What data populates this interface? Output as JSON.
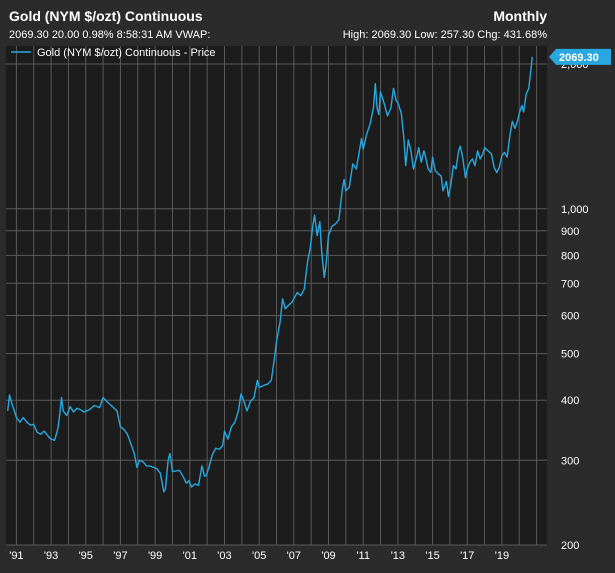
{
  "header": {
    "title": "Gold (NYM $/ozt) Continuous",
    "period": "Monthly",
    "quote": "2069.30 20.00 0.98% 8:58:31 AM VWAP:",
    "stats": "High: 2069.30 Low: 257.30 Chg: 431.68%"
  },
  "legend": {
    "label": "Gold (NYM $/ozt) Continuous - Price"
  },
  "price_tag": {
    "value": "2069.30"
  },
  "colors": {
    "background": "#2b2b2b",
    "plot_background": "#1c1c1c",
    "grid": "#5a5a5a",
    "line": "#29a8e0",
    "text": "#ffffff"
  },
  "chart_data": {
    "type": "line",
    "title": "Gold (NYM $/ozt) Continuous",
    "series_name": "Gold (NYM $/ozt) Continuous - Price",
    "y_scale": "log",
    "ylim": [
      200,
      2180
    ],
    "xlim": [
      1990.4,
      2021.6
    ],
    "y_ticks": [
      {
        "value": 200,
        "label": "200"
      },
      {
        "value": 300,
        "label": "300"
      },
      {
        "value": 400,
        "label": "400"
      },
      {
        "value": 500,
        "label": "500"
      },
      {
        "value": 600,
        "label": "600"
      },
      {
        "value": 700,
        "label": "700"
      },
      {
        "value": 800,
        "label": "800"
      },
      {
        "value": 900,
        "label": "900"
      },
      {
        "value": 1000,
        "label": "1,000"
      },
      {
        "value": 2000,
        "label": "2,000"
      }
    ],
    "x_ticks": [
      {
        "value": 1991,
        "label": "'91"
      },
      {
        "value": 1993,
        "label": "'93"
      },
      {
        "value": 1995,
        "label": "'95"
      },
      {
        "value": 1997,
        "label": "'97"
      },
      {
        "value": 1999,
        "label": "'99"
      },
      {
        "value": 2001,
        "label": "'01"
      },
      {
        "value": 2003,
        "label": "'03"
      },
      {
        "value": 2005,
        "label": "'05"
      },
      {
        "value": 2007,
        "label": "'07"
      },
      {
        "value": 2009,
        "label": "'09"
      },
      {
        "value": 2011,
        "label": "'11"
      },
      {
        "value": 2013,
        "label": "'13"
      },
      {
        "value": 2015,
        "label": "'15"
      },
      {
        "value": 2017,
        "label": "'17"
      },
      {
        "value": 2019,
        "label": "'19"
      }
    ],
    "grid_years": [
      1991,
      1992,
      1993,
      1994,
      1995,
      1996,
      1997,
      1998,
      1999,
      2000,
      2001,
      2002,
      2003,
      2004,
      2005,
      2006,
      2007,
      2008,
      2009,
      2010,
      2011,
      2012,
      2013,
      2014,
      2015,
      2016,
      2017,
      2018,
      2019,
      2020,
      2021
    ],
    "points": [
      [
        1990.5,
        380
      ],
      [
        1990.6,
        410
      ],
      [
        1990.75,
        392
      ],
      [
        1990.9,
        378
      ],
      [
        1991.0,
        368
      ],
      [
        1991.2,
        360
      ],
      [
        1991.4,
        368
      ],
      [
        1991.6,
        360
      ],
      [
        1991.8,
        355
      ],
      [
        1992.0,
        356
      ],
      [
        1992.2,
        343
      ],
      [
        1992.4,
        340
      ],
      [
        1992.6,
        345
      ],
      [
        1992.8,
        338
      ],
      [
        1992.95,
        333
      ],
      [
        1993.2,
        330
      ],
      [
        1993.4,
        350
      ],
      [
        1993.5,
        375
      ],
      [
        1993.6,
        405
      ],
      [
        1993.7,
        380
      ],
      [
        1993.9,
        372
      ],
      [
        1994.1,
        388
      ],
      [
        1994.3,
        378
      ],
      [
        1994.5,
        385
      ],
      [
        1994.7,
        382
      ],
      [
        1994.9,
        378
      ],
      [
        1995.2,
        382
      ],
      [
        1995.5,
        390
      ],
      [
        1995.8,
        386
      ],
      [
        1996.0,
        405
      ],
      [
        1996.2,
        398
      ],
      [
        1996.4,
        392
      ],
      [
        1996.6,
        386
      ],
      [
        1996.8,
        380
      ],
      [
        1997.0,
        352
      ],
      [
        1997.2,
        348
      ],
      [
        1997.4,
        340
      ],
      [
        1997.6,
        325
      ],
      [
        1997.8,
        310
      ],
      [
        1997.95,
        290
      ],
      [
        1998.1,
        300
      ],
      [
        1998.3,
        298
      ],
      [
        1998.5,
        292
      ],
      [
        1998.7,
        292
      ],
      [
        1998.9,
        290
      ],
      [
        1999.1,
        288
      ],
      [
        1999.3,
        282
      ],
      [
        1999.5,
        258
      ],
      [
        1999.6,
        262
      ],
      [
        1999.75,
        300
      ],
      [
        1999.85,
        310
      ],
      [
        2000.0,
        284
      ],
      [
        2000.2,
        285
      ],
      [
        2000.4,
        286
      ],
      [
        2000.6,
        278
      ],
      [
        2000.8,
        269
      ],
      [
        2000.95,
        272
      ],
      [
        2001.1,
        264
      ],
      [
        2001.3,
        268
      ],
      [
        2001.5,
        266
      ],
      [
        2001.7,
        292
      ],
      [
        2001.85,
        278
      ],
      [
        2001.95,
        279
      ],
      [
        2002.1,
        290
      ],
      [
        2002.3,
        308
      ],
      [
        2002.5,
        318
      ],
      [
        2002.7,
        316
      ],
      [
        2002.9,
        322
      ],
      [
        2003.0,
        345
      ],
      [
        2003.2,
        332
      ],
      [
        2003.4,
        352
      ],
      [
        2003.6,
        360
      ],
      [
        2003.8,
        380
      ],
      [
        2003.95,
        412
      ],
      [
        2004.1,
        400
      ],
      [
        2004.3,
        380
      ],
      [
        2004.5,
        398
      ],
      [
        2004.7,
        405
      ],
      [
        2004.9,
        440
      ],
      [
        2005.0,
        425
      ],
      [
        2005.3,
        430
      ],
      [
        2005.5,
        432
      ],
      [
        2005.7,
        440
      ],
      [
        2005.9,
        495
      ],
      [
        2006.0,
        530
      ],
      [
        2006.2,
        580
      ],
      [
        2006.35,
        650
      ],
      [
        2006.5,
        620
      ],
      [
        2006.7,
        630
      ],
      [
        2006.9,
        640
      ],
      [
        2007.0,
        650
      ],
      [
        2007.2,
        670
      ],
      [
        2007.4,
        660
      ],
      [
        2007.6,
        680
      ],
      [
        2007.8,
        780
      ],
      [
        2007.95,
        830
      ],
      [
        2008.1,
        925
      ],
      [
        2008.2,
        970
      ],
      [
        2008.35,
        880
      ],
      [
        2008.5,
        940
      ],
      [
        2008.6,
        820
      ],
      [
        2008.75,
        720
      ],
      [
        2008.85,
        760
      ],
      [
        2009.0,
        880
      ],
      [
        2009.2,
        920
      ],
      [
        2009.4,
        930
      ],
      [
        2009.6,
        950
      ],
      [
        2009.8,
        1100
      ],
      [
        2009.9,
        1150
      ],
      [
        2010.0,
        1090
      ],
      [
        2010.2,
        1110
      ],
      [
        2010.4,
        1240
      ],
      [
        2010.6,
        1210
      ],
      [
        2010.75,
        1300
      ],
      [
        2010.9,
        1400
      ],
      [
        2011.0,
        1330
      ],
      [
        2011.2,
        1430
      ],
      [
        2011.4,
        1500
      ],
      [
        2011.6,
        1630
      ],
      [
        2011.7,
        1820
      ],
      [
        2011.8,
        1620
      ],
      [
        2011.9,
        1570
      ],
      [
        2012.0,
        1750
      ],
      [
        2012.2,
        1660
      ],
      [
        2012.4,
        1560
      ],
      [
        2012.6,
        1620
      ],
      [
        2012.75,
        1780
      ],
      [
        2012.9,
        1680
      ],
      [
        2013.0,
        1660
      ],
      [
        2013.2,
        1580
      ],
      [
        2013.35,
        1400
      ],
      [
        2013.45,
        1230
      ],
      [
        2013.6,
        1390
      ],
      [
        2013.75,
        1320
      ],
      [
        2013.9,
        1210
      ],
      [
        2014.1,
        1290
      ],
      [
        2014.2,
        1340
      ],
      [
        2014.35,
        1250
      ],
      [
        2014.5,
        1320
      ],
      [
        2014.6,
        1280
      ],
      [
        2014.75,
        1210
      ],
      [
        2014.9,
        1190
      ],
      [
        2015.0,
        1280
      ],
      [
        2015.15,
        1200
      ],
      [
        2015.35,
        1180
      ],
      [
        2015.5,
        1170
      ],
      [
        2015.6,
        1090
      ],
      [
        2015.8,
        1140
      ],
      [
        2015.92,
        1060
      ],
      [
        2016.05,
        1120
      ],
      [
        2016.2,
        1230
      ],
      [
        2016.35,
        1210
      ],
      [
        2016.5,
        1320
      ],
      [
        2016.6,
        1350
      ],
      [
        2016.75,
        1270
      ],
      [
        2016.9,
        1160
      ],
      [
        2017.0,
        1210
      ],
      [
        2017.15,
        1250
      ],
      [
        2017.3,
        1270
      ],
      [
        2017.45,
        1230
      ],
      [
        2017.6,
        1320
      ],
      [
        2017.75,
        1270
      ],
      [
        2017.9,
        1300
      ],
      [
        2018.0,
        1340
      ],
      [
        2018.2,
        1320
      ],
      [
        2018.4,
        1300
      ],
      [
        2018.55,
        1220
      ],
      [
        2018.7,
        1190
      ],
      [
        2018.85,
        1220
      ],
      [
        2019.0,
        1290
      ],
      [
        2019.15,
        1310
      ],
      [
        2019.3,
        1280
      ],
      [
        2019.45,
        1410
      ],
      [
        2019.6,
        1520
      ],
      [
        2019.75,
        1470
      ],
      [
        2019.9,
        1520
      ],
      [
        2020.0,
        1580
      ],
      [
        2020.15,
        1640
      ],
      [
        2020.25,
        1590
      ],
      [
        2020.4,
        1730
      ],
      [
        2020.55,
        1780
      ],
      [
        2020.75,
        2069.3
      ]
    ]
  }
}
